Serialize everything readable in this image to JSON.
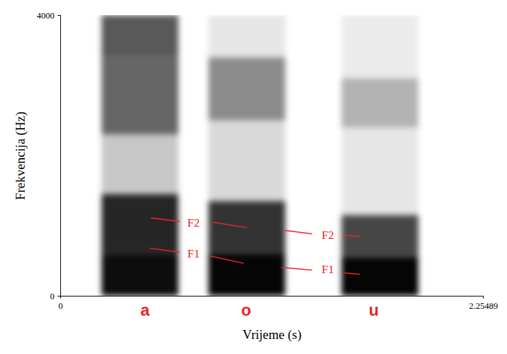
{
  "chart_data": {
    "type": "spectrogram",
    "x_label": "Vrijeme (s)",
    "y_label": "Frekvencija (Hz)",
    "xlim": [
      0,
      2.25489
    ],
    "xticks": [
      0,
      2.25489
    ],
    "ylim": [
      0,
      4000
    ],
    "yticks": [
      0,
      4000
    ],
    "intensity_range": [
      0,
      1
    ],
    "segments": [
      {
        "start": 0.22,
        "end": 0.63,
        "bands": [
          {
            "lo": 0,
            "hi": 600,
            "level": 0.95
          },
          {
            "lo": 600,
            "hi": 1450,
            "level": 0.85
          },
          {
            "lo": 1450,
            "hi": 2300,
            "level": 0.22
          },
          {
            "lo": 2300,
            "hi": 3400,
            "level": 0.6
          },
          {
            "lo": 3400,
            "hi": 4000,
            "level": 0.65
          }
        ]
      },
      {
        "start": 0.79,
        "end": 1.2,
        "bands": [
          {
            "lo": 0,
            "hi": 600,
            "level": 0.98
          },
          {
            "lo": 600,
            "hi": 1350,
            "level": 0.8
          },
          {
            "lo": 1350,
            "hi": 2500,
            "level": 0.15
          },
          {
            "lo": 2500,
            "hi": 3400,
            "level": 0.45
          },
          {
            "lo": 3400,
            "hi": 4000,
            "level": 0.1
          }
        ]
      },
      {
        "start": 1.5,
        "end": 1.91,
        "bands": [
          {
            "lo": 0,
            "hi": 550,
            "level": 0.98
          },
          {
            "lo": 550,
            "hi": 1150,
            "level": 0.72
          },
          {
            "lo": 1150,
            "hi": 2400,
            "level": 0.1
          },
          {
            "lo": 2400,
            "hi": 3100,
            "level": 0.3
          },
          {
            "lo": 3100,
            "hi": 4000,
            "level": 0.08
          }
        ]
      }
    ],
    "vowel_labels": {
      "labels": [
        "a",
        "o",
        "u"
      ],
      "x": [
        0.45,
        0.99,
        1.67
      ],
      "color": "#e8242a"
    },
    "annotations": {
      "color": "#e8242a",
      "items": [
        {
          "text": "F2",
          "x": 0.709,
          "y": 1044,
          "lines": [
            [
              0.482,
              1113,
              0.636,
              1064
            ],
            [
              0.811,
              1054,
              0.994,
              976
            ]
          ]
        },
        {
          "text": "F1",
          "x": 0.709,
          "y": 605,
          "lines": [
            [
              0.475,
              683,
              0.636,
              625
            ],
            [
              0.793,
              576,
              0.976,
              468
            ]
          ]
        },
        {
          "text": "F2",
          "x": 1.425,
          "y": 869,
          "lines": [
            [
              1.195,
              937,
              1.341,
              888
            ],
            [
              1.506,
              869,
              1.597,
              849
            ]
          ]
        },
        {
          "text": "F1",
          "x": 1.425,
          "y": 381,
          "lines": [
            [
              1.177,
              410,
              1.341,
              371
            ],
            [
              1.506,
              332,
              1.597,
              312
            ]
          ]
        }
      ]
    }
  }
}
